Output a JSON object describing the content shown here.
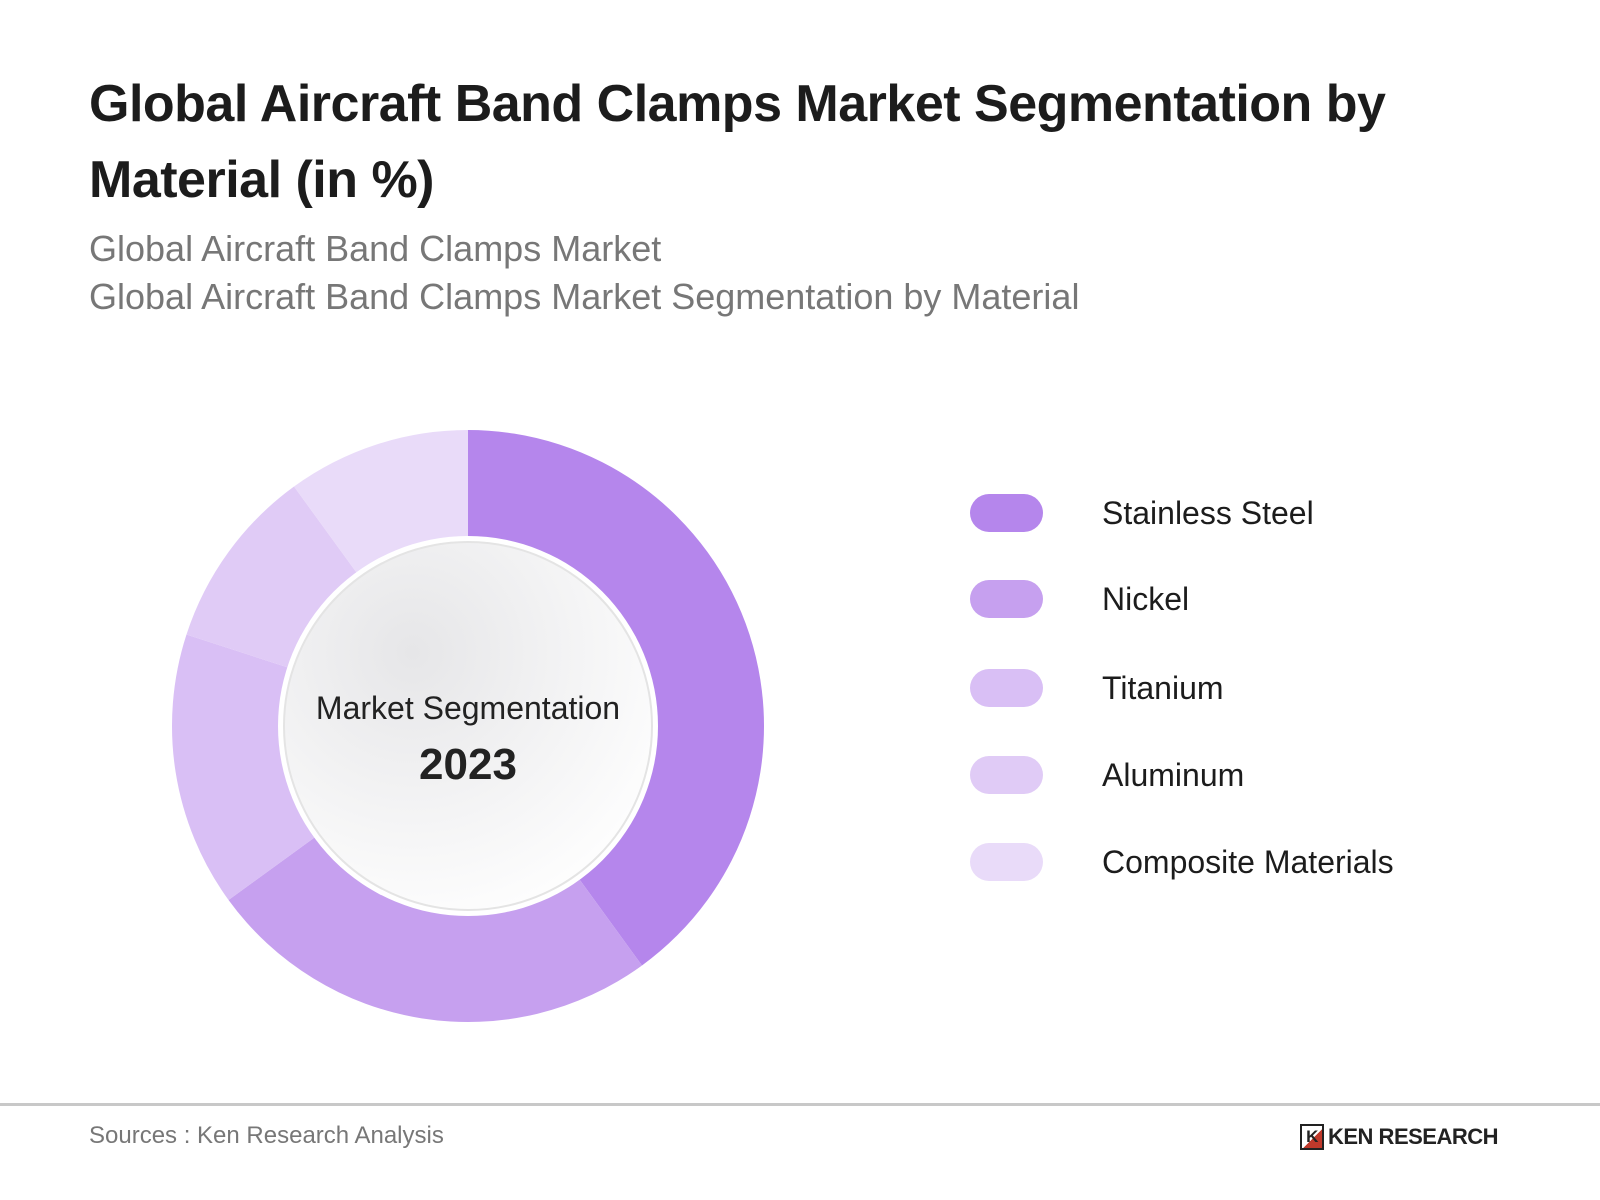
{
  "header": {
    "title": "Global Aircraft Band Clamps Market Segmentation by Material (in %)",
    "subtitle_1": "Global Aircraft Band Clamps Market",
    "subtitle_2": "Global Aircraft Band Clamps Market Segmentation by Material"
  },
  "chart_data": {
    "type": "pie",
    "style": "donut",
    "title": "Global Aircraft Band Clamps Market Segmentation by Material (in %)",
    "center_label": "Market Segmentation",
    "center_year": "2023",
    "legend_position": "right",
    "categories": [
      "Stainless Steel",
      "Nickel",
      "Titanium",
      "Aluminum",
      "Composite Materials"
    ],
    "values": [
      40,
      25,
      15,
      10,
      10
    ],
    "colors": [
      "#b586ec",
      "#c6a0ef",
      "#d9bff5",
      "#e0cbf6",
      "#e9dbf9"
    ]
  },
  "footer": {
    "source": "Sources : Ken Research Analysis",
    "logo_text": "KEN RESEARCH",
    "logo_mark": "K"
  }
}
